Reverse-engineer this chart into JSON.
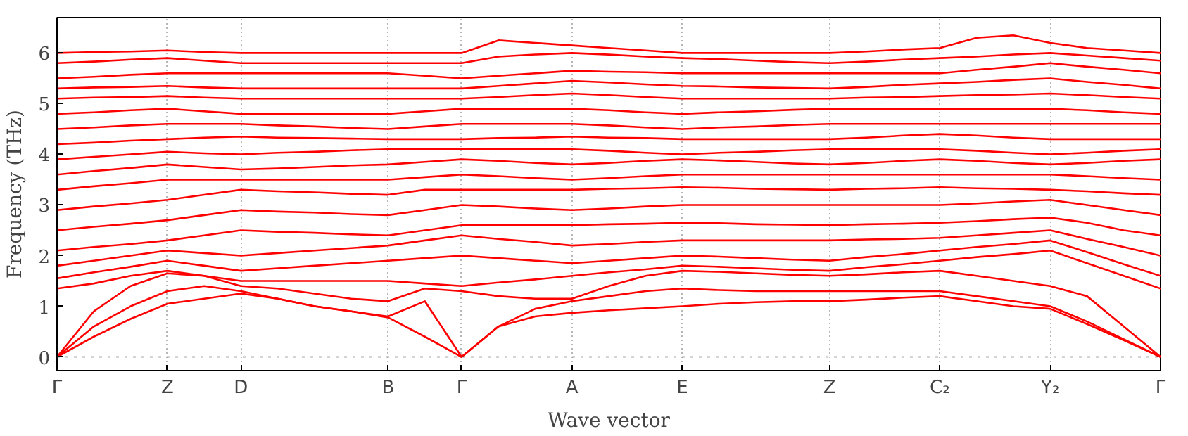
{
  "chart_data": {
    "type": "line",
    "xlabel": "Wave vector",
    "ylabel": "Frequency (THz)",
    "ylim": [
      -0.27,
      6.7
    ],
    "yticks": [
      0,
      1,
      2,
      3,
      4,
      5,
      6
    ],
    "categories": [
      "Γ",
      null,
      null,
      "Z",
      null,
      "D",
      null,
      null,
      null,
      "B",
      null,
      "Γ",
      null,
      null,
      "A",
      null,
      null,
      "E",
      null,
      null,
      null,
      "Z",
      null,
      null,
      "C₂",
      null,
      null,
      "Y₂",
      null,
      null,
      "Γ"
    ],
    "grid": "x",
    "line_style": "solid",
    "ref_lines": [
      {
        "axis": "y",
        "value": 0,
        "color": "#555555",
        "line_style": "dotted"
      }
    ],
    "series": [
      {
        "color": "#ff0000",
        "values": [
          0,
          0.4,
          0.75,
          1.05,
          1.15,
          1.25,
          1.15,
          1.0,
          0.9,
          0.78,
          0.4,
          0,
          0.6,
          0.8,
          0.87,
          0.92,
          0.96,
          1.0,
          1.05,
          1.08,
          1.1,
          1.1,
          1.13,
          1.17,
          1.2,
          1.1,
          1.0,
          0.95,
          0.65,
          0.33,
          0
        ]
      },
      {
        "color": "#ff0000",
        "values": [
          0,
          0.6,
          1.0,
          1.3,
          1.4,
          1.3,
          1.15,
          1.0,
          0.9,
          0.8,
          1.1,
          0,
          0.6,
          0.95,
          1.1,
          1.2,
          1.3,
          1.35,
          1.32,
          1.3,
          1.3,
          1.3,
          1.3,
          1.3,
          1.3,
          1.2,
          1.1,
          1.0,
          0.7,
          0.35,
          0
        ]
      },
      {
        "color": "#ff0000",
        "values": [
          0,
          0.9,
          1.4,
          1.65,
          1.6,
          1.4,
          1.35,
          1.25,
          1.15,
          1.1,
          1.35,
          1.3,
          1.2,
          1.15,
          1.15,
          1.4,
          1.6,
          1.7,
          1.68,
          1.65,
          1.62,
          1.6,
          1.63,
          1.67,
          1.7,
          1.6,
          1.5,
          1.4,
          1.2,
          0.6,
          0
        ]
      },
      {
        "color": "#ff0000",
        "values": [
          1.35,
          1.45,
          1.6,
          1.7,
          1.6,
          1.5,
          1.5,
          1.5,
          1.5,
          1.5,
          1.45,
          1.4,
          1.47,
          1.53,
          1.6,
          1.67,
          1.73,
          1.8,
          1.78,
          1.75,
          1.72,
          1.7,
          1.77,
          1.83,
          1.9,
          1.97,
          2.03,
          2.1,
          1.85,
          1.6,
          1.35
        ]
      },
      {
        "color": "#ff0000",
        "values": [
          1.55,
          1.67,
          1.78,
          1.9,
          1.8,
          1.7,
          1.75,
          1.8,
          1.85,
          1.9,
          1.95,
          2.0,
          1.95,
          1.9,
          1.85,
          1.9,
          1.95,
          2.0,
          1.98,
          1.95,
          1.92,
          1.9,
          1.97,
          2.03,
          2.1,
          2.17,
          2.23,
          2.3,
          2.07,
          1.83,
          1.6
        ]
      },
      {
        "color": "#ff0000",
        "values": [
          1.8,
          1.9,
          2.0,
          2.1,
          2.05,
          2.0,
          2.05,
          2.1,
          2.15,
          2.2,
          2.3,
          2.4,
          2.33,
          2.27,
          2.2,
          2.23,
          2.27,
          2.3,
          2.3,
          2.3,
          2.3,
          2.3,
          2.32,
          2.33,
          2.35,
          2.4,
          2.45,
          2.5,
          2.33,
          2.17,
          2.0
        ]
      },
      {
        "color": "#ff0000",
        "values": [
          2.1,
          2.17,
          2.23,
          2.3,
          2.4,
          2.5,
          2.47,
          2.45,
          2.42,
          2.4,
          2.5,
          2.6,
          2.6,
          2.6,
          2.6,
          2.62,
          2.63,
          2.65,
          2.64,
          2.62,
          2.61,
          2.6,
          2.62,
          2.63,
          2.65,
          2.68,
          2.72,
          2.75,
          2.65,
          2.5,
          2.4
        ]
      },
      {
        "color": "#ff0000",
        "values": [
          2.5,
          2.57,
          2.63,
          2.7,
          2.8,
          2.9,
          2.87,
          2.85,
          2.82,
          2.8,
          2.9,
          3.0,
          2.97,
          2.93,
          2.9,
          2.93,
          2.97,
          3.0,
          3.0,
          3.0,
          3.0,
          3.0,
          3.0,
          3.0,
          3.0,
          3.03,
          3.07,
          3.1,
          3.0,
          2.9,
          2.8
        ]
      },
      {
        "color": "#ff0000",
        "values": [
          2.9,
          2.97,
          3.03,
          3.1,
          3.2,
          3.3,
          3.27,
          3.25,
          3.22,
          3.2,
          3.3,
          3.3,
          3.3,
          3.3,
          3.3,
          3.32,
          3.33,
          3.35,
          3.34,
          3.32,
          3.31,
          3.3,
          3.32,
          3.33,
          3.35,
          3.33,
          3.32,
          3.3,
          3.27,
          3.23,
          3.2
        ]
      },
      {
        "color": "#ff0000",
        "values": [
          3.3,
          3.37,
          3.43,
          3.5,
          3.5,
          3.5,
          3.5,
          3.5,
          3.5,
          3.5,
          3.55,
          3.6,
          3.57,
          3.53,
          3.5,
          3.53,
          3.57,
          3.6,
          3.6,
          3.6,
          3.6,
          3.6,
          3.6,
          3.6,
          3.6,
          3.6,
          3.6,
          3.6,
          3.57,
          3.53,
          3.5
        ]
      },
      {
        "color": "#ff0000",
        "values": [
          3.6,
          3.67,
          3.73,
          3.8,
          3.75,
          3.7,
          3.72,
          3.75,
          3.78,
          3.8,
          3.85,
          3.9,
          3.87,
          3.83,
          3.8,
          3.83,
          3.87,
          3.9,
          3.88,
          3.85,
          3.82,
          3.8,
          3.83,
          3.87,
          3.9,
          3.87,
          3.83,
          3.8,
          3.83,
          3.87,
          3.9
        ]
      },
      {
        "color": "#ff0000",
        "values": [
          3.9,
          3.95,
          4.0,
          4.05,
          4.02,
          4.0,
          4.03,
          4.05,
          4.08,
          4.1,
          4.1,
          4.1,
          4.1,
          4.1,
          4.1,
          4.07,
          4.03,
          4.0,
          4.03,
          4.05,
          4.08,
          4.1,
          4.1,
          4.1,
          4.1,
          4.07,
          4.03,
          4.0,
          4.03,
          4.07,
          4.1
        ]
      },
      {
        "color": "#ff0000",
        "values": [
          4.2,
          4.23,
          4.27,
          4.3,
          4.33,
          4.35,
          4.33,
          4.32,
          4.31,
          4.3,
          4.3,
          4.3,
          4.32,
          4.33,
          4.35,
          4.33,
          4.32,
          4.3,
          4.3,
          4.3,
          4.3,
          4.3,
          4.33,
          4.37,
          4.4,
          4.37,
          4.33,
          4.3,
          4.3,
          4.3,
          4.3
        ]
      },
      {
        "color": "#ff0000",
        "values": [
          4.5,
          4.53,
          4.57,
          4.6,
          4.6,
          4.6,
          4.57,
          4.55,
          4.52,
          4.5,
          4.55,
          4.6,
          4.6,
          4.6,
          4.6,
          4.57,
          4.53,
          4.5,
          4.53,
          4.55,
          4.58,
          4.6,
          4.6,
          4.6,
          4.6,
          4.6,
          4.6,
          4.6,
          4.6,
          4.6,
          4.6
        ]
      },
      {
        "color": "#ff0000",
        "values": [
          4.8,
          4.83,
          4.87,
          4.9,
          4.85,
          4.8,
          4.8,
          4.8,
          4.8,
          4.8,
          4.85,
          4.9,
          4.9,
          4.9,
          4.9,
          4.87,
          4.83,
          4.8,
          4.83,
          4.85,
          4.88,
          4.9,
          4.9,
          4.9,
          4.9,
          4.9,
          4.9,
          4.9,
          4.87,
          4.83,
          4.8
        ]
      },
      {
        "color": "#ff0000",
        "values": [
          5.1,
          5.12,
          5.13,
          5.15,
          5.12,
          5.1,
          5.1,
          5.1,
          5.1,
          5.1,
          5.1,
          5.1,
          5.13,
          5.17,
          5.2,
          5.17,
          5.13,
          5.1,
          5.1,
          5.1,
          5.1,
          5.1,
          5.12,
          5.13,
          5.15,
          5.17,
          5.18,
          5.2,
          5.17,
          5.13,
          5.1
        ]
      },
      {
        "color": "#ff0000",
        "values": [
          5.3,
          5.32,
          5.33,
          5.35,
          5.32,
          5.3,
          5.3,
          5.3,
          5.3,
          5.3,
          5.3,
          5.3,
          5.35,
          5.4,
          5.45,
          5.42,
          5.38,
          5.35,
          5.34,
          5.32,
          5.31,
          5.3,
          5.33,
          5.37,
          5.4,
          5.43,
          5.47,
          5.5,
          5.43,
          5.37,
          5.3
        ]
      },
      {
        "color": "#ff0000",
        "values": [
          5.5,
          5.53,
          5.57,
          5.6,
          5.6,
          5.6,
          5.6,
          5.6,
          5.6,
          5.6,
          5.55,
          5.5,
          5.55,
          5.6,
          5.65,
          5.63,
          5.62,
          5.6,
          5.6,
          5.6,
          5.6,
          5.6,
          5.6,
          5.6,
          5.6,
          5.67,
          5.73,
          5.8,
          5.73,
          5.67,
          5.6
        ]
      },
      {
        "color": "#ff0000",
        "values": [
          5.8,
          5.83,
          5.87,
          5.9,
          5.85,
          5.8,
          5.8,
          5.8,
          5.8,
          5.8,
          5.8,
          5.8,
          5.93,
          5.97,
          6.0,
          5.97,
          5.93,
          5.9,
          5.88,
          5.85,
          5.82,
          5.8,
          5.83,
          5.87,
          5.9,
          5.93,
          5.97,
          6.0,
          5.95,
          5.9,
          5.85
        ]
      },
      {
        "color": "#ff0000",
        "values": [
          6.0,
          6.02,
          6.03,
          6.05,
          6.02,
          6.0,
          6.0,
          6.0,
          6.0,
          6.0,
          6.0,
          6.0,
          6.25,
          6.2,
          6.15,
          6.1,
          6.05,
          6.0,
          6.0,
          6.0,
          6.0,
          6.0,
          6.03,
          6.07,
          6.1,
          6.3,
          6.35,
          6.2,
          6.1,
          6.05,
          6.0
        ]
      }
    ]
  }
}
